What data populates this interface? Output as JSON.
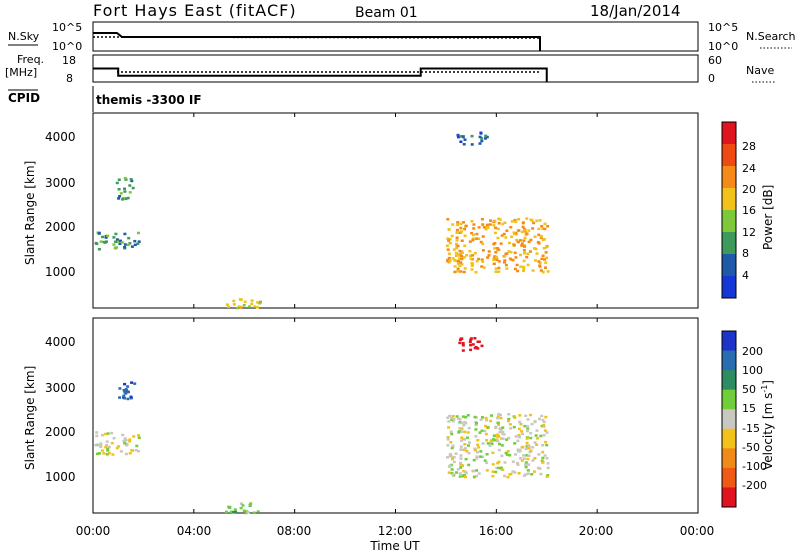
{
  "header": {
    "station": "Fort Hays East (fitACF)",
    "beam": "Beam 01",
    "date": "18/Jan/2014"
  },
  "noise_panel": {
    "left_label": "N.Sky",
    "right_label": "N.Search",
    "left_ticks": [
      "10^5",
      "10^0"
    ],
    "right_ticks": [
      "10^5",
      "10^0"
    ]
  },
  "freq_panel": {
    "left_label_1": "Freq.",
    "left_label_2": "[MHz]",
    "right_label": "Nave",
    "left_ticks": [
      "18",
      "8"
    ],
    "right_ticks": [
      "60",
      "0"
    ],
    "freq_steps": [
      {
        "t0": 0.0,
        "t1": 1.0,
        "freq_mhz": 15.5
      },
      {
        "t0": 1.0,
        "t1": 13.0,
        "freq_mhz": 11.5
      },
      {
        "t0": 13.0,
        "t1": 18.0,
        "freq_mhz": 15.5
      }
    ],
    "nave_level": 20
  },
  "cpid": {
    "label": "CPID",
    "program": "themis -3300 IF"
  },
  "time_axis": {
    "label": "Time UT",
    "ticks": [
      "00:00",
      "04:00",
      "08:00",
      "12:00",
      "16:00",
      "20:00",
      "00:00"
    ],
    "range_hours": [
      0,
      24
    ]
  },
  "power_panel": {
    "ylabel": "Slant Range [km]",
    "yticks": [
      "4000",
      "3000",
      "2000",
      "1000"
    ],
    "cbar_label": "Power [dB]",
    "cbar_ticks": [
      "28",
      "24",
      "20",
      "16",
      "12",
      "8",
      "4"
    ],
    "cbar_colors": [
      "#e0141e",
      "#f04a14",
      "#f58a18",
      "#f3c21a",
      "#7ec83c",
      "#3d9a5a",
      "#1e5aa8",
      "#1437d6"
    ]
  },
  "velocity_panel": {
    "ylabel": "Slant Range [km]",
    "yticks": [
      "4000",
      "3000",
      "2000",
      "1000"
    ],
    "cbar_label": "Velocity [m s",
    "cbar_label_sup": "-1",
    "cbar_label_end": "]",
    "cbar_ticks": [
      "200",
      "100",
      "50",
      "15",
      "-15",
      "-50",
      "-100",
      "-200"
    ],
    "cbar_colors": [
      "#1c35c8",
      "#2a6cb0",
      "#2d8c62",
      "#6fce3a",
      "#c8c8c0",
      "#f3c21a",
      "#f08a18",
      "#ef5a14",
      "#e0141e"
    ]
  },
  "chart_data": {
    "type": "heatmap",
    "x": "time (hours UT)",
    "y": "slant range (km)",
    "xlim": [
      0,
      24
    ],
    "ylim": [
      180,
      4500
    ],
    "panels": [
      {
        "name": "Power",
        "units": "dB",
        "clim": [
          0,
          32
        ],
        "regions": [
          {
            "t": [
              0.05,
              1.8
            ],
            "r": [
              1500,
              1900
            ],
            "value": 10
          },
          {
            "t": [
              0.9,
              1.6
            ],
            "r": [
              2600,
              3100
            ],
            "value": 10
          },
          {
            "t": [
              5.2,
              6.6
            ],
            "r": [
              200,
              420
            ],
            "value": 18
          },
          {
            "t": [
              14.0,
              18.0
            ],
            "r": [
              1000,
              2200
            ],
            "value": 20
          },
          {
            "t": [
              14.4,
              15.6
            ],
            "r": [
              3800,
              4100
            ],
            "value": 6
          }
        ]
      },
      {
        "name": "Velocity",
        "units": "m s-1",
        "clim": [
          -200,
          200
        ],
        "regions": [
          {
            "t": [
              0.05,
              1.8
            ],
            "r": [
              1500,
              2000
            ],
            "value": 0
          },
          {
            "t": [
              0.9,
              1.6
            ],
            "r": [
              2700,
              3100
            ],
            "value": 150
          },
          {
            "t": [
              5.2,
              6.6
            ],
            "r": [
              200,
              420
            ],
            "value": 40
          },
          {
            "t": [
              14.0,
              18.0
            ],
            "r": [
              1000,
              2400
            ],
            "value": 0
          },
          {
            "t": [
              14.4,
              15.4
            ],
            "r": [
              3800,
              4100
            ],
            "value": -220
          }
        ]
      }
    ]
  }
}
